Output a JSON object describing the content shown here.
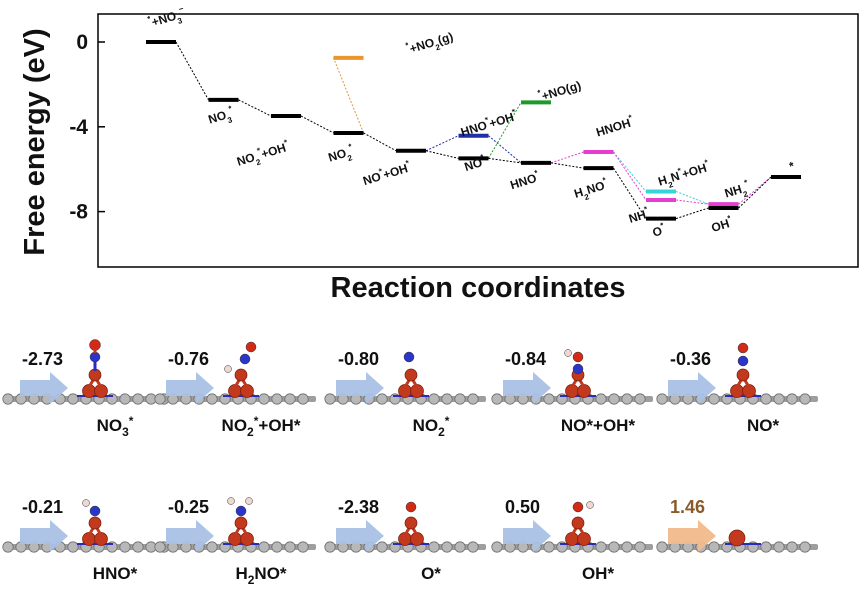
{
  "chart_data": {
    "type": "line",
    "title": "",
    "xlabel": "Reaction coordinates",
    "ylabel": "Free energy (eV)",
    "ylim": [
      -10.3,
      1.4
    ],
    "yticks": [
      {
        "v": 0,
        "t": "0"
      },
      {
        "v": -4,
        "t": "-4"
      },
      {
        "v": -8,
        "t": "-8"
      }
    ],
    "legend": "none",
    "grid": false,
    "levels": [
      {
        "x": 1,
        "y": 0.0,
        "color": "#000000",
        "label": [
          {
            "t": "*",
            "sup": 1
          },
          {
            "t": "+NO"
          },
          {
            "t": "3",
            "sub": 1
          },
          {
            "t": "−",
            "sup": 1
          }
        ]
      },
      {
        "x": 2,
        "y": -2.73,
        "color": "#000000",
        "label": [
          {
            "t": "NO"
          },
          {
            "t": "3",
            "sub": 1
          },
          {
            "t": "*",
            "sup": 1
          }
        ]
      },
      {
        "x": 3,
        "y": -3.49,
        "color": "#000000",
        "label": [
          {
            "t": "NO"
          },
          {
            "t": "2",
            "sub": 1
          },
          {
            "t": "*",
            "sup": 1
          },
          {
            "t": "+OH"
          },
          {
            "t": "*",
            "sup": 1
          }
        ]
      },
      {
        "x": 4,
        "y": -4.29,
        "color": "#000000",
        "label": [
          {
            "t": "NO"
          },
          {
            "t": "2",
            "sub": 1
          },
          {
            "t": "*",
            "sup": 1
          }
        ]
      },
      {
        "x": 4,
        "y": -0.75,
        "color": "#e8962d",
        "label": [
          {
            "t": "*",
            "sup": 1
          },
          {
            "t": "+NO"
          },
          {
            "t": "2",
            "sub": 1
          },
          {
            "t": "(g)"
          }
        ]
      },
      {
        "x": 5,
        "y": -5.13,
        "color": "#000000",
        "label": [
          {
            "t": "NO"
          },
          {
            "t": "*",
            "sup": 1
          },
          {
            "t": "+OH"
          },
          {
            "t": "*",
            "sup": 1
          }
        ]
      },
      {
        "x": 6,
        "y": -4.42,
        "color": "#1f2fa8",
        "label": [
          {
            "t": "HNO"
          },
          {
            "t": "*",
            "sup": 1
          },
          {
            "t": "+OH"
          },
          {
            "t": "*",
            "sup": 1
          }
        ]
      },
      {
        "x": 6,
        "y": -5.49,
        "color": "#000000",
        "label": [
          {
            "t": "NO"
          },
          {
            "t": "*",
            "sup": 1
          }
        ]
      },
      {
        "x": 7,
        "y": -2.85,
        "color": "#1e9a2a",
        "label": [
          {
            "t": "*",
            "sup": 1
          },
          {
            "t": "+NO(g)"
          }
        ]
      },
      {
        "x": 7,
        "y": -5.7,
        "color": "#000000",
        "label": [
          {
            "t": "HNO"
          },
          {
            "t": "*",
            "sup": 1
          }
        ]
      },
      {
        "x": 8,
        "y": -5.19,
        "color": "#e43fd0",
        "label": [
          {
            "t": "HNOH"
          },
          {
            "t": "*",
            "sup": 1
          }
        ]
      },
      {
        "x": 8,
        "y": -5.95,
        "color": "#000000",
        "label": [
          {
            "t": "H"
          },
          {
            "t": "2",
            "sub": 1
          },
          {
            "t": "NO"
          },
          {
            "t": "*",
            "sup": 1
          }
        ]
      },
      {
        "x": 9,
        "y": -7.05,
        "color": "#34d4d8",
        "label": [
          {
            "t": "H"
          },
          {
            "t": "2",
            "sub": 1
          },
          {
            "t": "N"
          },
          {
            "t": "*",
            "sup": 1
          },
          {
            "t": "+OH"
          },
          {
            "t": "*",
            "sup": 1
          }
        ]
      },
      {
        "x": 9,
        "y": -7.45,
        "color": "#e43fd0",
        "label": [
          {
            "t": "NH"
          },
          {
            "t": "*",
            "sup": 1
          }
        ]
      },
      {
        "x": 9,
        "y": -8.33,
        "color": "#000000",
        "label": [
          {
            "t": "O"
          },
          {
            "t": "*",
            "sup": 1
          }
        ]
      },
      {
        "x": 10,
        "y": -7.65,
        "color": "#e43fd0",
        "label": [
          {
            "t": "NH"
          },
          {
            "t": "2",
            "sub": 1
          },
          {
            "t": "*",
            "sup": 1
          }
        ]
      },
      {
        "x": 10,
        "y": -7.83,
        "color": "#000000",
        "label": [
          {
            "t": "OH"
          },
          {
            "t": "*",
            "sup": 1
          }
        ]
      },
      {
        "x": 11,
        "y": -6.37,
        "color": "#000000",
        "label": [
          {
            "t": "*"
          }
        ]
      }
    ],
    "connectors": [
      {
        "from": 0,
        "to": 1,
        "color": "#000000"
      },
      {
        "from": 1,
        "to": 2,
        "color": "#000000"
      },
      {
        "from": 2,
        "to": 3,
        "color": "#000000"
      },
      {
        "from": 3,
        "to": 4,
        "color": "#e8962d"
      },
      {
        "from": 3,
        "to": 5,
        "color": "#000000"
      },
      {
        "from": 5,
        "to": 6,
        "color": "#1f2fa8"
      },
      {
        "from": 5,
        "to": 7,
        "color": "#000000"
      },
      {
        "from": 6,
        "to": 9,
        "color": "#1f2fa8"
      },
      {
        "from": 7,
        "to": 8,
        "color": "#1e9a2a"
      },
      {
        "from": 7,
        "to": 9,
        "color": "#000000"
      },
      {
        "from": 9,
        "to": 10,
        "color": "#e43fd0"
      },
      {
        "from": 9,
        "to": 11,
        "color": "#000000"
      },
      {
        "from": 10,
        "to": 12,
        "color": "#34d4d8"
      },
      {
        "from": 10,
        "to": 13,
        "color": "#e43fd0"
      },
      {
        "from": 11,
        "to": 14,
        "color": "#000000"
      },
      {
        "from": 12,
        "to": 15,
        "color": "#34d4d8"
      },
      {
        "from": 13,
        "to": 15,
        "color": "#e43fd0"
      },
      {
        "from": 14,
        "to": 16,
        "color": "#000000"
      },
      {
        "from": 15,
        "to": 17,
        "color": "#e43fd0"
      },
      {
        "from": 16,
        "to": 17,
        "color": "#000000"
      }
    ]
  },
  "steps": [
    {
      "value": "-2.73",
      "name": [
        {
          "t": "NO"
        },
        {
          "t": "3",
          "sub": 1
        },
        {
          "t": "*",
          "sup": 1
        }
      ],
      "arrow": "#a9c1e6",
      "vcolor": "#111111"
    },
    {
      "value": "-0.76",
      "name": [
        {
          "t": "NO"
        },
        {
          "t": "2",
          "sub": 1
        },
        {
          "t": "*",
          "sup": 1
        },
        {
          "t": "+OH*"
        }
      ],
      "arrow": "#a9c1e6",
      "vcolor": "#111111"
    },
    {
      "value": "-0.80",
      "name": [
        {
          "t": "NO"
        },
        {
          "t": "2",
          "sub": 1
        },
        {
          "t": "*",
          "sup": 1
        }
      ],
      "arrow": "#a9c1e6",
      "vcolor": "#111111"
    },
    {
      "value": "-0.84",
      "name": [
        {
          "t": "NO*+OH*"
        }
      ],
      "arrow": "#a9c1e6",
      "vcolor": "#111111"
    },
    {
      "value": "-0.36",
      "name": [
        {
          "t": "NO*"
        }
      ],
      "arrow": "#a9c1e6",
      "vcolor": "#111111"
    },
    {
      "value": "-0.21",
      "name": [
        {
          "t": "HNO*"
        }
      ],
      "arrow": "#a9c1e6",
      "vcolor": "#111111"
    },
    {
      "value": "-0.25",
      "name": [
        {
          "t": "H"
        },
        {
          "t": "2",
          "sub": 1
        },
        {
          "t": "NO*"
        }
      ],
      "arrow": "#a9c1e6",
      "vcolor": "#111111"
    },
    {
      "value": "-2.38",
      "name": [
        {
          "t": "O*"
        }
      ],
      "arrow": "#a9c1e6",
      "vcolor": "#111111"
    },
    {
      "value": "0.50",
      "name": [
        {
          "t": "OH*"
        }
      ],
      "arrow": "#a9c1e6",
      "vcolor": "#111111"
    },
    {
      "value": "1.46",
      "name": [],
      "arrow": "#f2b98c",
      "vcolor": "#8a5a2b"
    }
  ]
}
